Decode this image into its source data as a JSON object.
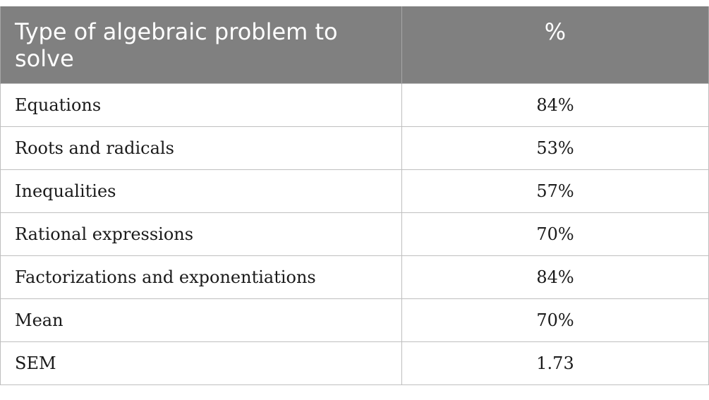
{
  "table": {
    "headers": [
      "Type of algebraic problem to solve",
      "%"
    ],
    "rows": [
      {
        "label": "Equations",
        "value": "84%"
      },
      {
        "label": "Roots and radicals",
        "value": "53%"
      },
      {
        "label": "Inequalities",
        "value": "57%"
      },
      {
        "label": "Rational expressions",
        "value": "70%"
      },
      {
        "label": "Factorizations and exponentiations",
        "value": "84%"
      },
      {
        "label": "Mean",
        "value": "70%"
      },
      {
        "label": "SEM",
        "value": "1.73"
      }
    ]
  },
  "colors": {
    "header_bg": "#808080",
    "header_text": "#ffffff",
    "grid": "#bfbfbf"
  }
}
